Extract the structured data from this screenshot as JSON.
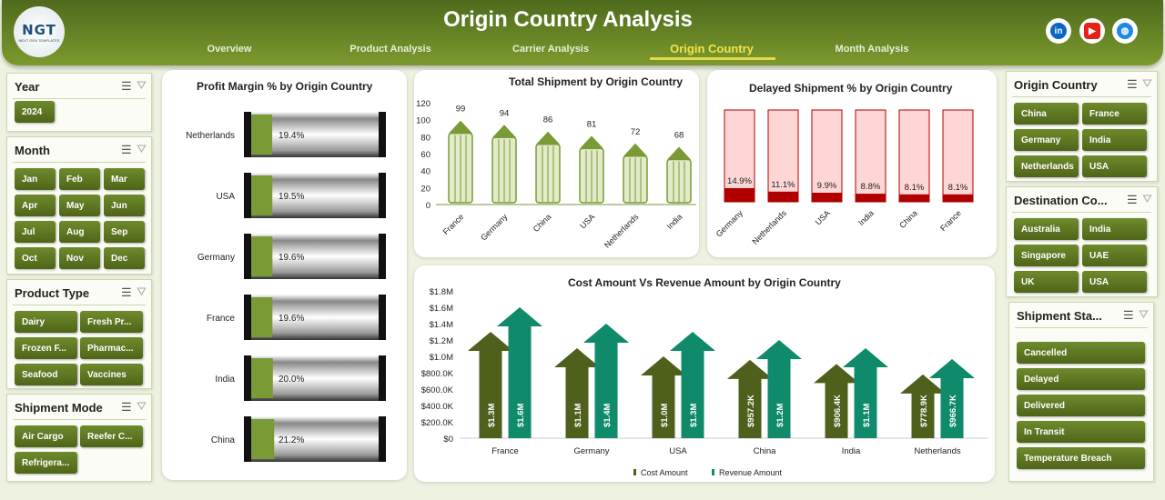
{
  "header": {
    "title": "Origin Country Analysis",
    "logo": "NGT",
    "logo_sub": "NEXT GEN TEMPLATES",
    "nav": [
      {
        "label": "Overview"
      },
      {
        "label": "Product Analysis"
      },
      {
        "label": "Carrier Analysis"
      },
      {
        "label": "Origin Country",
        "active": true
      },
      {
        "label": "Month Analysis"
      }
    ],
    "social": [
      {
        "icon": "linkedin-icon",
        "glyph": "in",
        "color": "#0a66c2"
      },
      {
        "icon": "youtube-icon",
        "glyph": "▶",
        "color": "#e62117"
      },
      {
        "icon": "globe-icon",
        "glyph": "◍",
        "color": "#1e88e5"
      }
    ]
  },
  "left_slicers": [
    {
      "title": "Year",
      "items": [
        "2024"
      ]
    },
    {
      "title": "Month",
      "items": [
        "Jan",
        "Feb",
        "Mar",
        "Apr",
        "May",
        "Jun",
        "Jul",
        "Aug",
        "Sep",
        "Oct",
        "Nov",
        "Dec"
      ]
    },
    {
      "title": "Product Type",
      "items": [
        "Dairy",
        "Fresh Pr...",
        "Frozen F...",
        "Pharmac...",
        "Seafood",
        "Vaccines"
      ]
    },
    {
      "title": "Shipment Mode",
      "items": [
        "Air Cargo",
        "Reefer C...",
        "Refrigera..."
      ]
    }
  ],
  "right_slicers": [
    {
      "title": "Origin Country",
      "items": [
        "China",
        "France",
        "Germany",
        "India",
        "Netherlands",
        "USA"
      ]
    },
    {
      "title": "Destination Co...",
      "items": [
        "Australia",
        "India",
        "Singapore",
        "UAE",
        "UK",
        "USA"
      ]
    },
    {
      "title": "Shipment Sta...",
      "items": [
        "Cancelled",
        "Delayed",
        "Delivered",
        "In Transit",
        "Temperature Breach"
      ]
    }
  ],
  "chart_data": [
    {
      "type": "bar",
      "title": "Profit Margin % by Origin Country",
      "categories": [
        "Netherlands",
        "USA",
        "Germany",
        "France",
        "India",
        "China"
      ],
      "values": [
        19.4,
        19.5,
        19.6,
        19.6,
        20.0,
        21.2
      ],
      "labels": [
        "19.4%",
        "19.5%",
        "19.6%",
        "19.6%",
        "20.0%",
        "21.2%"
      ],
      "xlim": [
        0,
        100
      ],
      "color": "#7a9a35"
    },
    {
      "type": "bar",
      "title": "Total Shipment by Origin Country",
      "categories": [
        "France",
        "Germany",
        "China",
        "USA",
        "Netherlands",
        "India"
      ],
      "values": [
        99,
        94,
        86,
        81,
        72,
        68
      ],
      "ylim": [
        0,
        120
      ],
      "yticks": [
        "0",
        "20",
        "40",
        "60",
        "80",
        "100",
        "120"
      ],
      "color": "#7a9a35"
    },
    {
      "type": "bar",
      "title": "Delayed Shipment % by Origin Country",
      "categories": [
        "Germany",
        "Netherlands",
        "USA",
        "India",
        "China",
        "France"
      ],
      "values": [
        14.9,
        11.1,
        9.9,
        8.8,
        8.1,
        8.1
      ],
      "labels": [
        "14.9%",
        "11.1%",
        "9.9%",
        "8.8%",
        "8.1%",
        "8.1%"
      ],
      "ylim": [
        0,
        100
      ],
      "color": "#b00000",
      "bg": "#ffd6d6"
    },
    {
      "type": "bar",
      "title": "Cost Amount Vs Revenue Amount by Origin Country",
      "categories": [
        "France",
        "Germany",
        "USA",
        "China",
        "India",
        "Netherlands"
      ],
      "ylim": [
        0,
        1.8
      ],
      "yticks": [
        "$0",
        "$200.0K",
        "$400.0K",
        "$600.0K",
        "$800.0K",
        "$1.0M",
        "$1.2M",
        "$1.4M",
        "$1.6M",
        "$1.8M"
      ],
      "series": [
        {
          "name": "Cost Amount",
          "color": "#4f5f1c",
          "values": [
            1.3,
            1.1,
            1.0,
            0.9572,
            0.9064,
            0.7789
          ],
          "labels": [
            "$1.3M",
            "$1.1M",
            "$1.0M",
            "$957.2K",
            "$906.4K",
            "$778.9K"
          ]
        },
        {
          "name": "Revenue Amount",
          "color": "#0f8a6a",
          "values": [
            1.6,
            1.4,
            1.3,
            1.2,
            1.1,
            0.9667
          ],
          "labels": [
            "$1.6M",
            "$1.4M",
            "$1.3M",
            "$1.2M",
            "$1.1M",
            "$966.7K"
          ]
        }
      ]
    }
  ]
}
